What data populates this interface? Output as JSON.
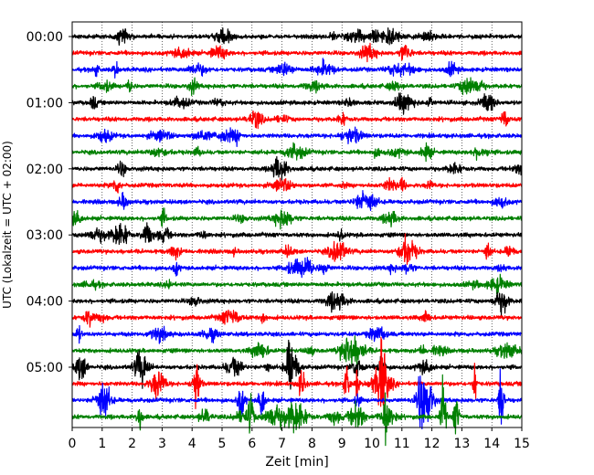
{
  "chart_data": {
    "type": "line",
    "title": "",
    "xlabel": "Zeit  [min]",
    "ylabel": "UTC (Lokalzeit = UTC + 02:00)",
    "xlim": [
      0,
      15
    ],
    "x_ticks": [
      0,
      1,
      2,
      3,
      4,
      5,
      6,
      7,
      8,
      9,
      10,
      11,
      12,
      13,
      14,
      15
    ],
    "y_tick_labels": [
      "00:00",
      "01:00",
      "02:00",
      "03:00",
      "04:00",
      "05:00"
    ],
    "trace_minutes": 15,
    "grid": "vertical dotted at each minute",
    "color_cycle": [
      "#000000",
      "#ff0000",
      "#0000ff",
      "#008000"
    ],
    "trace_start_times": [
      "00:00",
      "00:15",
      "00:30",
      "00:45",
      "01:00",
      "01:15",
      "01:30",
      "01:45",
      "02:00",
      "02:15",
      "02:30",
      "02:45",
      "03:00",
      "03:15",
      "03:30",
      "03:45",
      "04:00",
      "04:15",
      "04:30",
      "04:45",
      "05:00",
      "05:15",
      "05:30",
      "05:45"
    ]
  }
}
